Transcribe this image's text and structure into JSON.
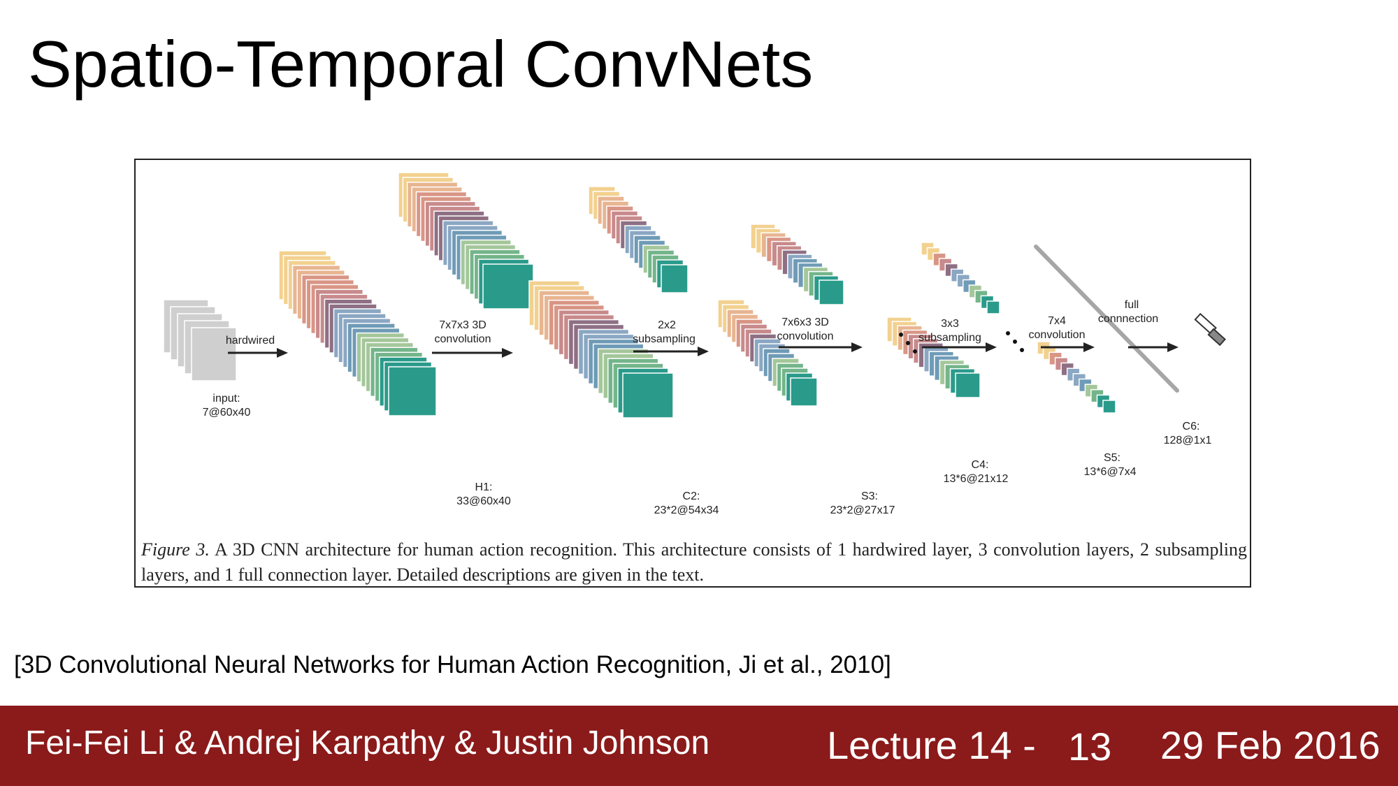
{
  "slide": {
    "title": "Spatio-Temporal ConvNets",
    "citation": "[3D Convolutional Neural Networks for Human Action Recognition, Ji et al., 2010]"
  },
  "figure": {
    "caption_label": "Figure 3.",
    "caption_text": "A 3D CNN architecture for human action recognition. This architecture consists of 1 hardwired layer, 3 convolution layers, 2 subsampling layers, and 1 full connection layer. Detailed descriptions are given in the text.",
    "colors": {
      "input": "#cfcfcf",
      "palette": [
        "#f2d18f",
        "#e8b591",
        "#d99585",
        "#c88a8c",
        "#8e6f84",
        "#8aa7c3",
        "#6f9bb6",
        "#a4c79a",
        "#73b58a",
        "#2a9b8b"
      ],
      "arrow": "#222222",
      "fc_bar": "#a6a6a6"
    },
    "layers": {
      "input": {
        "name": "input:",
        "size": "7@60x40"
      },
      "h1": {
        "name": "H1:",
        "size": "33@60x40"
      },
      "c2": {
        "name": "C2:",
        "size": "23*2@54x34"
      },
      "s3": {
        "name": "S3:",
        "size": "23*2@27x17"
      },
      "c4": {
        "name": "C4:",
        "size": "13*6@21x12"
      },
      "s5": {
        "name": "S5:",
        "size": "13*6@7x4"
      },
      "c6": {
        "name": "C6:",
        "size": "128@1x1"
      }
    },
    "operations": {
      "hardwired": "hardwired",
      "conv1_line1": "7x7x3 3D",
      "conv1_line2": "convolution",
      "sub1_line1": "2x2",
      "sub1_line2": "subsampling",
      "conv2_line1": "7x6x3 3D",
      "conv2_line2": "convolution",
      "sub2_line1": "3x3",
      "sub2_line2": "subsampling",
      "conv3_line1": "7x4",
      "conv3_line2": "convolution",
      "full_line1": "full",
      "full_line2": "connnection"
    }
  },
  "footer": {
    "authors": "Fei-Fei Li & Andrej Karpathy & Justin Johnson",
    "lecture": "Lecture 14 -",
    "page": "13",
    "date": "29 Feb 2016"
  }
}
